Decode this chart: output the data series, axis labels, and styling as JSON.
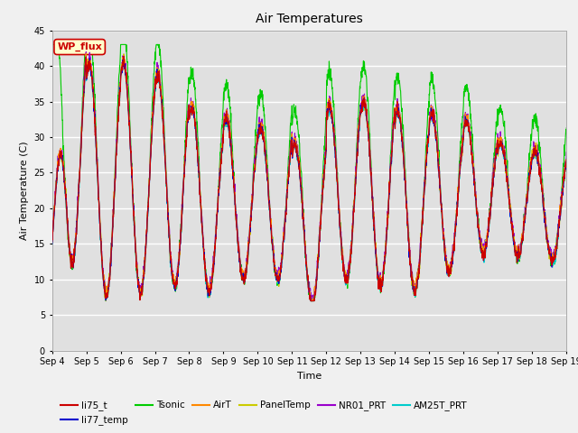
{
  "title": "Air Temperatures",
  "xlabel": "Time",
  "ylabel": "Air Temperature (C)",
  "ylim": [
    0,
    45
  ],
  "yticks": [
    0,
    5,
    10,
    15,
    20,
    25,
    30,
    35,
    40,
    45
  ],
  "date_labels": [
    "Sep 4",
    "Sep 5",
    "Sep 6",
    "Sep 7",
    "Sep 8",
    "Sep 9",
    "Sep 10",
    "Sep 11",
    "Sep 12",
    "Sep 13",
    "Sep 14",
    "Sep 15",
    "Sep 16",
    "Sep 17",
    "Sep 18",
    "Sep 19"
  ],
  "annotation_text": "WP_flux",
  "annotation_bg": "#ffffcc",
  "annotation_border": "#cc0000",
  "series_colors": {
    "li75_t": "#cc0000",
    "li77_temp": "#0000cc",
    "Tsonic": "#00cc00",
    "AirT": "#ff8800",
    "PanelTemp": "#cccc00",
    "NR01_PRT": "#9900cc",
    "AM25T_PRT": "#00cccc"
  },
  "fig_bg": "#f0f0f0",
  "axes_bg": "#e0e0e0",
  "grid_color": "#ffffff",
  "n_days": 15,
  "pts_per_day": 144
}
